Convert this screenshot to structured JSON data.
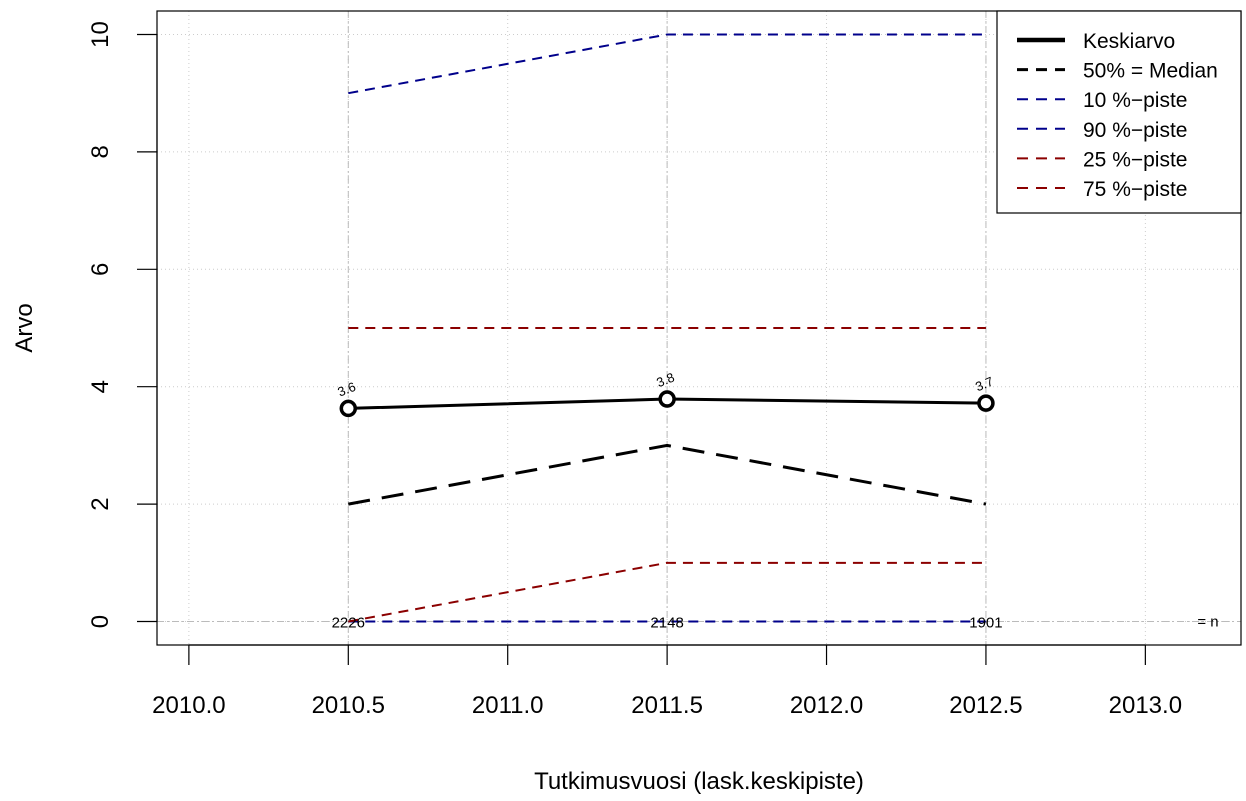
{
  "chart_data": {
    "type": "line",
    "title": "",
    "xlabel": "Tutkimusvuosi (lask.keskipiste)",
    "ylabel": "Arvo",
    "xlim": [
      2009.9,
      2013.3
    ],
    "ylim": [
      -0.4,
      10.4
    ],
    "xticks": [
      2010.0,
      2010.5,
      2011.0,
      2011.5,
      2012.0,
      2012.5,
      2013.0
    ],
    "xtick_labels": [
      "2010.0",
      "2010.5",
      "2011.0",
      "2011.5",
      "2012.0",
      "2012.5",
      "2013.0"
    ],
    "yticks": [
      0,
      2,
      4,
      6,
      8,
      10
    ],
    "ytick_labels": [
      "0",
      "2",
      "4",
      "6",
      "8",
      "10"
    ],
    "grid": true,
    "legend_position": "top-right",
    "x": [
      2010.5,
      2011.5,
      2012.5
    ],
    "series": [
      {
        "name": "Keskiarvo",
        "values": [
          3.63,
          3.79,
          3.72
        ],
        "color": "#000000",
        "style": "solid",
        "width": 3,
        "markers": true
      },
      {
        "name": "50% = Median",
        "values": [
          2,
          3,
          2
        ],
        "color": "#000000",
        "style": "dashed",
        "width": 3
      },
      {
        "name": "10 %−piste",
        "values": [
          0,
          0,
          0
        ],
        "color": "#00008b",
        "style": "dashed",
        "width": 2
      },
      {
        "name": "90 %−piste",
        "values": [
          9,
          10,
          10
        ],
        "color": "#00008b",
        "style": "dashed",
        "width": 2
      },
      {
        "name": "25 %−piste",
        "values": [
          0,
          1,
          1
        ],
        "color": "#8b0000",
        "style": "dashed",
        "width": 2
      },
      {
        "name": "75 %−piste",
        "values": [
          5,
          5,
          5
        ],
        "color": "#8b0000",
        "style": "dashed",
        "width": 2
      }
    ],
    "mean_labels": [
      "3.6",
      "3.8",
      "3.7"
    ],
    "n_values": [
      "2226",
      "2148",
      "1901"
    ],
    "n_label": "= n"
  }
}
